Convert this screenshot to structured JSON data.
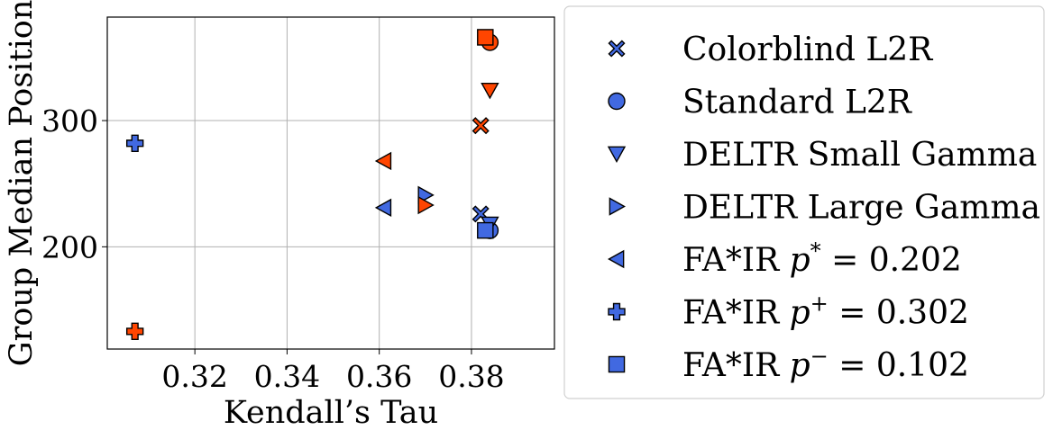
{
  "chart_data": {
    "type": "scatter",
    "xlabel": "Kendall’s Tau",
    "ylabel": "Group Median Position",
    "xlim": [
      0.301,
      0.398
    ],
    "ylim": [
      119,
      382
    ],
    "xticks": [
      0.32,
      0.34,
      0.36,
      0.38
    ],
    "xtick_labels": [
      "0.32",
      "0.34",
      "0.36",
      "0.38"
    ],
    "yticks": [
      200,
      300
    ],
    "ytick_labels": [
      "200",
      "300"
    ],
    "grid": true,
    "legend_position": "right, outside plot",
    "colors": {
      "group_a": "#4169e1",
      "group_b": "#ff4500",
      "edge": "#000000"
    },
    "series": [
      {
        "name": "Colorblind L2R",
        "marker": "x-filled",
        "points": [
          {
            "x": 0.382,
            "y": 226,
            "group": "group_a"
          },
          {
            "x": 0.382,
            "y": 296,
            "group": "group_b"
          }
        ]
      },
      {
        "name": "Standard L2R",
        "marker": "circle",
        "points": [
          {
            "x": 0.384,
            "y": 213,
            "group": "group_a"
          },
          {
            "x": 0.384,
            "y": 362,
            "group": "group_b"
          }
        ]
      },
      {
        "name": "DELTR Small Gamma",
        "marker": "triangle-down",
        "points": [
          {
            "x": 0.384,
            "y": 218,
            "group": "group_a"
          },
          {
            "x": 0.384,
            "y": 324,
            "group": "group_b"
          }
        ]
      },
      {
        "name": "DELTR Large Gamma",
        "marker": "triangle-right",
        "points": [
          {
            "x": 0.37,
            "y": 241,
            "group": "group_a"
          },
          {
            "x": 0.37,
            "y": 233,
            "group": "group_b"
          }
        ]
      },
      {
        "name": "FA*IR p* = 0.202",
        "marker": "triangle-left",
        "points": [
          {
            "x": 0.361,
            "y": 231,
            "group": "group_a"
          },
          {
            "x": 0.361,
            "y": 268,
            "group": "group_b"
          }
        ]
      },
      {
        "name": "FA*IR p+ = 0.302",
        "marker": "plus-filled",
        "points": [
          {
            "x": 0.307,
            "y": 282,
            "group": "group_a"
          },
          {
            "x": 0.307,
            "y": 133,
            "group": "group_b"
          }
        ]
      },
      {
        "name": "FA*IR p− = 0.102",
        "marker": "square",
        "points": [
          {
            "x": 0.383,
            "y": 213,
            "group": "group_a"
          },
          {
            "x": 0.383,
            "y": 366,
            "group": "group_b"
          }
        ]
      }
    ],
    "legend_entries": [
      {
        "marker": "x-filled",
        "text": "Colorblind L2R"
      },
      {
        "marker": "circle",
        "text": "Standard L2R"
      },
      {
        "marker": "triangle-down",
        "text": "DELTR Small Gamma"
      },
      {
        "marker": "triangle-right",
        "text": "DELTR Large Gamma"
      },
      {
        "marker": "triangle-left",
        "prefix": "FA*IR ",
        "var": "p",
        "sup": "*",
        "suffix": " = 0.202"
      },
      {
        "marker": "plus-filled",
        "prefix": "FA*IR ",
        "var": "p",
        "sup": "+",
        "suffix": " = 0.302"
      },
      {
        "marker": "square",
        "prefix": "FA*IR ",
        "var": "p",
        "sup": "−",
        "suffix": " = 0.102"
      }
    ]
  }
}
